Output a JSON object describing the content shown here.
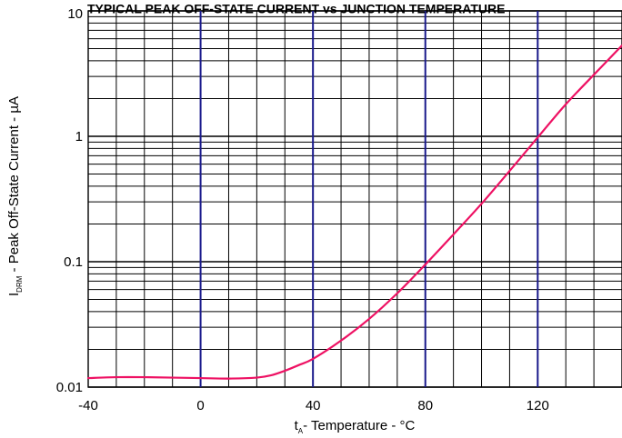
{
  "chart_data": {
    "type": "line",
    "title": "TYPICAL PEAK OFF-STATE CURRENT vs JUNCTION  TEMPERATURE",
    "xlabel": {
      "prefix": "t",
      "sub": "A",
      "suffix": "- Temperature - °C"
    },
    "ylabel": {
      "prefix": "I",
      "sub": "DRM",
      "suffix": " - Peak Off-State Current - µA"
    },
    "xlim": [
      -40,
      150
    ],
    "ylim": [
      0.01,
      10
    ],
    "yscale": "log",
    "x_ticks": [
      -40,
      0,
      40,
      80,
      120
    ],
    "x_tick_labels": [
      "-40",
      "0",
      "40",
      "80",
      "120"
    ],
    "y_ticks": [
      0.01,
      0.1,
      1,
      10
    ],
    "y_tick_labels": [
      "0.01",
      "0.1",
      "1",
      "10"
    ],
    "x_major_lines": [
      0,
      40,
      80,
      120
    ],
    "grid": true,
    "colors": {
      "curve": "#ee1163",
      "major_grid": "#1a1a8c",
      "grid": "#000000"
    },
    "series": [
      {
        "x": [
          -40,
          -30,
          -20,
          -10,
          0,
          10,
          20,
          25,
          30,
          35,
          40,
          50,
          60,
          70,
          80,
          90,
          100,
          110,
          120,
          130,
          140,
          150
        ],
        "y": [
          0.0118,
          0.012,
          0.012,
          0.0119,
          0.0118,
          0.0117,
          0.0119,
          0.0124,
          0.0135,
          0.015,
          0.0168,
          0.0235,
          0.035,
          0.056,
          0.095,
          0.165,
          0.29,
          0.53,
          0.98,
          1.8,
          3.1,
          5.3
        ]
      }
    ]
  }
}
